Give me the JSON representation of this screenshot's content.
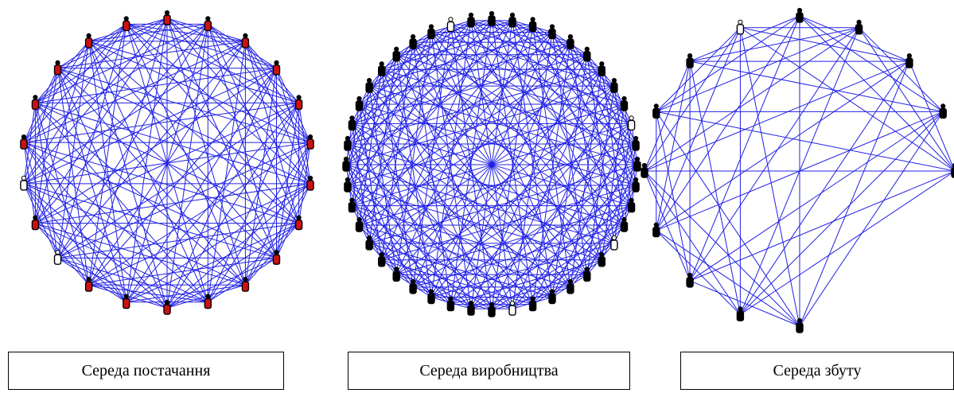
{
  "colors": {
    "edge": "#2020e6",
    "node_red": "#cc1111",
    "node_black": "#000000",
    "node_white": "#ffffff"
  },
  "panels": [
    {
      "caption": "Середа постачання",
      "nodes": [
        "red",
        "red",
        "red",
        "red",
        "red",
        "red",
        "red",
        "red",
        "red",
        "red",
        "red",
        "red",
        "red",
        "red",
        "red",
        "red",
        "red",
        "white",
        "red",
        "white",
        "red",
        "red"
      ],
      "edge_step_exclusions": [
        1
      ]
    },
    {
      "caption": "Середа виробництва",
      "nodes": [
        "black",
        "white",
        "black",
        "black",
        "black",
        "black",
        "black",
        "white",
        "black",
        "black",
        "black",
        "black",
        "black",
        "white",
        "black",
        "black",
        "black",
        "black",
        "black",
        "black",
        "black",
        "black",
        "black",
        "black",
        "white",
        "black",
        "black",
        "black",
        "black",
        "black",
        "black",
        "black",
        "black",
        "black",
        "black",
        "black",
        "black",
        "black",
        "black",
        "black",
        "black",
        "black",
        "black",
        "black"
      ],
      "edge_step_exclusions": []
    },
    {
      "caption": "Середа збуту",
      "nodes": [
        "black",
        "black",
        "black",
        "black",
        "black",
        "black",
        "black",
        "white",
        "black",
        "black",
        "black",
        "black",
        "black"
      ],
      "edge_step_exclusions": [
        1
      ]
    }
  ]
}
